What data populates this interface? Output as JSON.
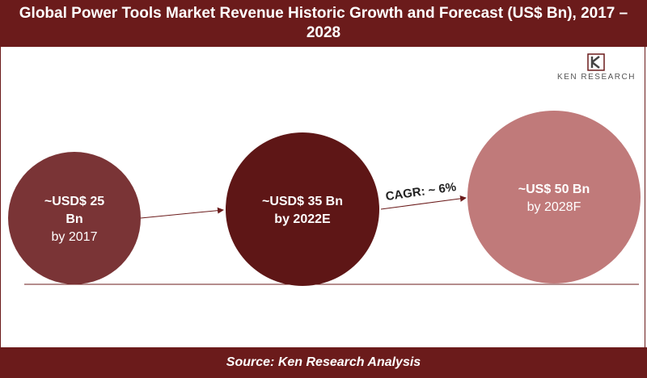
{
  "header": {
    "title": "Global Power Tools Market Revenue Historic Growth and Forecast (US$ Bn), 2017 – 2028"
  },
  "logo": {
    "text": "KEN RESEARCH",
    "mark_letter": "K"
  },
  "footer": {
    "source": "Source: Ken Research Analysis"
  },
  "colors": {
    "header_bg": "#6b1b1b",
    "bubble_2017": "#7a3436",
    "bubble_2022": "#5e1616",
    "bubble_2028": "#c07a7a",
    "axis_line": "#6b1b1b"
  },
  "chart_data": {
    "type": "bubble",
    "title": "Global Power Tools Market Revenue Historic Growth and Forecast (US$ Bn), 2017 – 2028",
    "unit": "US$ Bn",
    "points": [
      {
        "year": "2017",
        "value": 25,
        "label_line1": "~USD$ 25",
        "label_line2": "Bn",
        "label_line3": "by 2017"
      },
      {
        "year": "2022E",
        "value": 35,
        "label_line1": "~USD$ 35 Bn",
        "label_line2": "by 2022E"
      },
      {
        "year": "2028F",
        "value": 50,
        "label_line1": "~US$ 50 Bn",
        "label_line2": "by 2028F"
      }
    ],
    "annotations": [
      {
        "text": "CAGR: ~ 6%"
      }
    ]
  }
}
